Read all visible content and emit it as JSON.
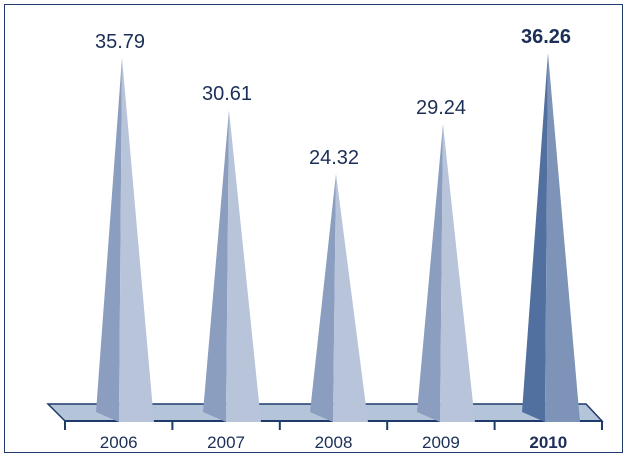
{
  "chart_data": {
    "type": "bar",
    "bar_shape": "pyramid-3d",
    "categories": [
      "2006",
      "2007",
      "2008",
      "2009",
      "2010"
    ],
    "values": [
      35.79,
      30.61,
      24.32,
      29.24,
      36.26
    ],
    "value_labels": [
      "35.79",
      "30.61",
      "24.32",
      "29.24",
      "36.26"
    ],
    "highlight_category": "2010",
    "title": "",
    "xlabel": "",
    "ylabel": "",
    "ylim": [
      0,
      36.26
    ],
    "grid": false,
    "legend": "none",
    "colors": {
      "bar_light": "#b7c4d9",
      "bar_dark": "#8b9ec0",
      "highlight_light": "#7e93b8",
      "highlight_dark": "#52709f",
      "floor_fill": "#b4c4d9",
      "outline": "#1f3a6b",
      "text": "#1c2f57"
    }
  }
}
